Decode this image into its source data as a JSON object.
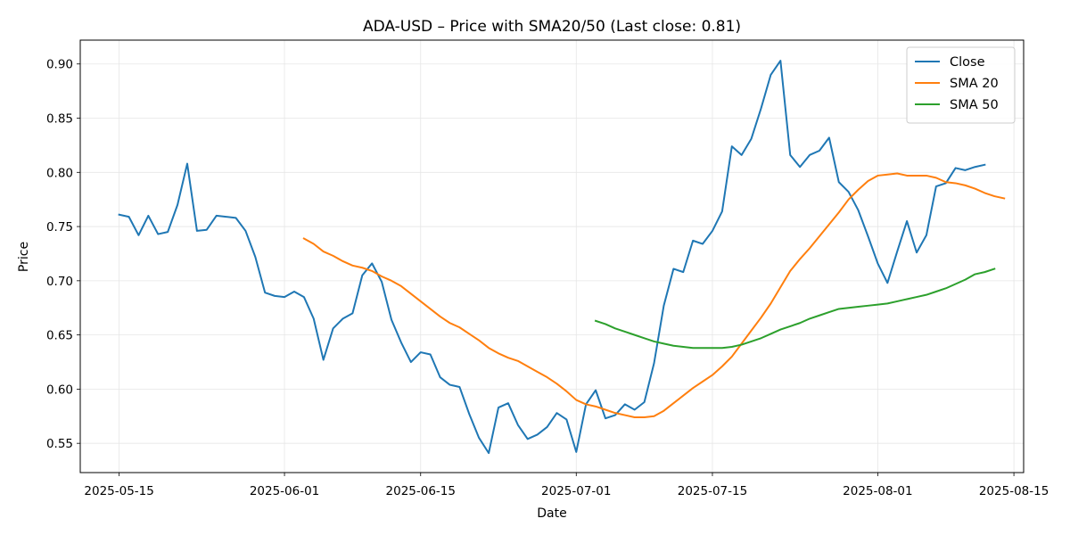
{
  "chart_data": {
    "type": "line",
    "title": "ADA-USD – Price with SMA20/50 (Last close: 0.81)",
    "xlabel": "Date",
    "ylabel": "Price",
    "x_axis_type": "date",
    "xlim": [
      "2025-05-11",
      "2025-08-16"
    ],
    "ylim": [
      0.523,
      0.922
    ],
    "x_ticks": [
      "2025-05-15",
      "2025-06-01",
      "2025-06-15",
      "2025-07-01",
      "2025-07-15",
      "2025-08-01",
      "2025-08-15"
    ],
    "y_ticks": [
      0.55,
      0.6,
      0.65,
      0.7,
      0.75,
      0.8,
      0.85,
      0.9
    ],
    "y_tick_labels": [
      "0.55",
      "0.60",
      "0.65",
      "0.70",
      "0.75",
      "0.80",
      "0.85",
      "0.90"
    ],
    "grid": true,
    "legend_position": "top-right",
    "series": [
      {
        "name": "Close",
        "color": "#1f77b4",
        "start_date": "2025-05-15",
        "values": [
          0.761,
          0.759,
          0.742,
          0.76,
          0.743,
          0.745,
          0.77,
          0.808,
          0.746,
          0.747,
          0.76,
          0.759,
          0.758,
          0.746,
          0.722,
          0.689,
          0.686,
          0.685,
          0.69,
          0.685,
          0.665,
          0.627,
          0.656,
          0.665,
          0.67,
          0.705,
          0.716,
          0.699,
          0.664,
          0.643,
          0.625,
          0.634,
          0.632,
          0.611,
          0.604,
          0.602,
          0.577,
          0.555,
          0.541,
          0.583,
          0.587,
          0.567,
          0.554,
          0.558,
          0.565,
          0.578,
          0.572,
          0.542,
          0.586,
          0.599,
          0.573,
          0.576,
          0.586,
          0.581,
          0.588,
          0.624,
          0.677,
          0.711,
          0.708,
          0.737,
          0.734,
          0.746,
          0.764,
          0.824,
          0.816,
          0.831,
          0.859,
          0.89,
          0.903,
          0.816,
          0.805,
          0.816,
          0.82,
          0.832,
          0.791,
          0.782,
          0.765,
          0.741,
          0.716,
          0.698,
          0.727,
          0.755,
          0.726,
          0.742,
          0.787,
          0.79,
          0.804,
          0.802,
          0.805,
          0.807
        ]
      },
      {
        "name": "SMA 20",
        "color": "#ff7f0e",
        "start_date": "2025-06-03",
        "values": [
          0.739,
          0.734,
          0.727,
          0.723,
          0.718,
          0.714,
          0.712,
          0.709,
          0.704,
          0.7,
          0.695,
          0.688,
          0.681,
          0.674,
          0.667,
          0.661,
          0.657,
          0.651,
          0.645,
          0.638,
          0.633,
          0.629,
          0.626,
          0.621,
          0.616,
          0.611,
          0.605,
          0.598,
          0.59,
          0.586,
          0.584,
          0.581,
          0.578,
          0.576,
          0.574,
          0.574,
          0.575,
          0.58,
          0.587,
          0.594,
          0.601,
          0.607,
          0.613,
          0.621,
          0.63,
          0.642,
          0.654,
          0.666,
          0.679,
          0.694,
          0.709,
          0.72,
          0.73,
          0.741,
          0.752,
          0.763,
          0.775,
          0.784,
          0.792,
          0.797,
          0.798,
          0.799,
          0.797,
          0.797,
          0.797,
          0.795,
          0.791,
          0.79,
          0.788,
          0.785,
          0.781,
          0.778,
          0.776
        ]
      },
      {
        "name": "SMA 50",
        "color": "#2ca02c",
        "start_date": "2025-07-03",
        "values": [
          0.663,
          0.66,
          0.656,
          0.653,
          0.65,
          0.647,
          0.644,
          0.642,
          0.64,
          0.639,
          0.638,
          0.638,
          0.638,
          0.638,
          0.639,
          0.641,
          0.644,
          0.647,
          0.651,
          0.655,
          0.658,
          0.661,
          0.665,
          0.668,
          0.671,
          0.674,
          0.675,
          0.676,
          0.677,
          0.678,
          0.679,
          0.681,
          0.683,
          0.685,
          0.687,
          0.69,
          0.693,
          0.697,
          0.701,
          0.706,
          0.708,
          0.711
        ]
      }
    ]
  }
}
